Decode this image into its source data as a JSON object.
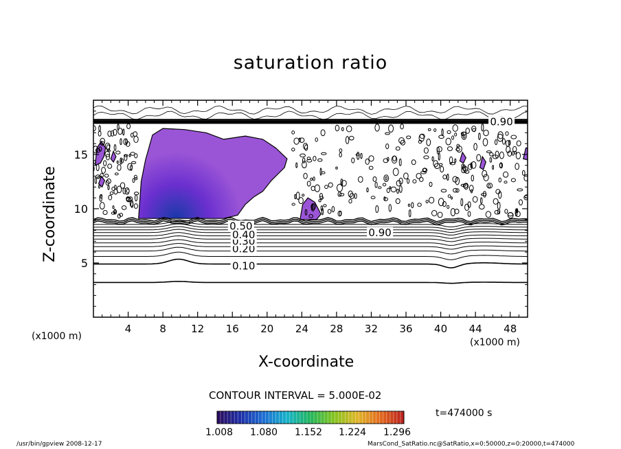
{
  "chart_data": {
    "type": "contour",
    "title": "saturation ratio",
    "xlabel": "X-coordinate",
    "ylabel": "Z-coordinate",
    "x_unit_label": "(x1000 m)",
    "xlim": [
      0,
      50
    ],
    "ylim": [
      0,
      20
    ],
    "x_ticks": [
      4,
      8,
      12,
      16,
      20,
      24,
      28,
      32,
      36,
      40,
      44,
      48
    ],
    "y_ticks": [
      5,
      10,
      15
    ],
    "contour_interval_text": "CONTOUR INTERVAL = 5.000E-02",
    "contour_labels": [
      {
        "x": 17.3,
        "y": 4.7,
        "text": "0.10"
      },
      {
        "x": 17.3,
        "y": 6.3,
        "text": "0.20"
      },
      {
        "x": 17.3,
        "y": 7.0,
        "text": "0.30"
      },
      {
        "x": 17.3,
        "y": 7.6,
        "text": "0.40"
      },
      {
        "x": 17.0,
        "y": 8.4,
        "text": "0.50"
      },
      {
        "x": 33.0,
        "y": 7.8,
        "text": "0.90"
      },
      {
        "x": 47.0,
        "y": 18.0,
        "text": "0.90"
      }
    ],
    "contour_levels": [
      {
        "z": 3.2,
        "bump": 0.1
      },
      {
        "z": 4.9,
        "bump": 0.45
      },
      {
        "z": 5.6,
        "bump": 0.4
      },
      {
        "z": 6.1,
        "bump": 0.35
      },
      {
        "z": 6.5,
        "bump": 0.3
      },
      {
        "z": 6.85,
        "bump": 0.3
      },
      {
        "z": 7.2,
        "bump": 0.3
      },
      {
        "z": 7.5,
        "bump": 0.3
      },
      {
        "z": 7.8,
        "bump": 0.3
      },
      {
        "z": 8.05,
        "bump": 0.3
      },
      {
        "z": 8.3,
        "bump": 0.3
      },
      {
        "z": 8.55,
        "bump": 0.3
      }
    ],
    "supersaturated_regions": [
      {
        "points": [
          [
            5.2,
            9.1
          ],
          [
            5.5,
            12.5
          ],
          [
            6.0,
            14.5
          ],
          [
            6.8,
            16.8
          ],
          [
            8.0,
            17.4
          ],
          [
            10.5,
            17.3
          ],
          [
            13.0,
            17.0
          ],
          [
            15.0,
            16.4
          ],
          [
            17.5,
            16.7
          ],
          [
            19.5,
            16.4
          ],
          [
            21.0,
            15.6
          ],
          [
            22.3,
            14.6
          ],
          [
            22.0,
            13.8
          ],
          [
            20.5,
            12.6
          ],
          [
            19.5,
            11.6
          ],
          [
            18.5,
            11.1
          ],
          [
            17.5,
            10.4
          ],
          [
            16.6,
            9.4
          ],
          [
            15.0,
            9.1
          ]
        ]
      },
      {
        "points": [
          [
            0.2,
            14.0
          ],
          [
            0.4,
            15.6
          ],
          [
            0.9,
            16.2
          ],
          [
            1.4,
            15.6
          ],
          [
            1.2,
            14.8
          ],
          [
            0.8,
            14.2
          ]
        ]
      },
      {
        "points": [
          [
            0.6,
            12.3
          ],
          [
            0.9,
            13.0
          ],
          [
            1.3,
            12.6
          ],
          [
            1.0,
            12.0
          ]
        ]
      },
      {
        "points": [
          [
            2.0,
            14.6
          ],
          [
            2.3,
            15.3
          ],
          [
            2.6,
            14.8
          ],
          [
            2.3,
            14.3
          ]
        ]
      },
      {
        "points": [
          [
            23.8,
            9.0
          ],
          [
            24.1,
            10.4
          ],
          [
            24.7,
            11.0
          ],
          [
            25.5,
            10.6
          ],
          [
            26.2,
            9.5
          ],
          [
            25.7,
            9.0
          ]
        ]
      },
      {
        "points": [
          [
            42.2,
            14.4
          ],
          [
            42.5,
            15.2
          ],
          [
            42.9,
            14.7
          ],
          [
            42.6,
            14.2
          ]
        ]
      },
      {
        "points": [
          [
            44.5,
            13.8
          ],
          [
            44.8,
            14.8
          ],
          [
            45.2,
            14.3
          ],
          [
            44.9,
            13.6
          ]
        ]
      },
      {
        "points": [
          [
            49.5,
            14.6
          ],
          [
            49.8,
            15.6
          ],
          [
            50.0,
            15.6
          ],
          [
            50.0,
            14.5
          ]
        ]
      }
    ],
    "min_center": {
      "x": 9.5,
      "y": 9.2
    },
    "colorbar": {
      "ticks": [
        "1.008",
        "1.080",
        "1.152",
        "1.224",
        "1.296"
      ],
      "colors": [
        "#2a0a5c",
        "#1f2fa8",
        "#1e6fd4",
        "#17b3c9",
        "#21b55a",
        "#84c41f",
        "#e0b62a",
        "#e36a1f",
        "#b81e1e"
      ]
    },
    "region_colors": [
      "#9a55d6",
      "#6a2fcf",
      "#3a37b8",
      "#1a37a8"
    ],
    "time_label": "t=474000 s"
  },
  "footer": {
    "left": "/usr/bin/gpview   2008-12-17",
    "right": "MarsCond_SatRatio.nc@SatRatio,x=0:50000,z=0:20000,t=474000"
  }
}
